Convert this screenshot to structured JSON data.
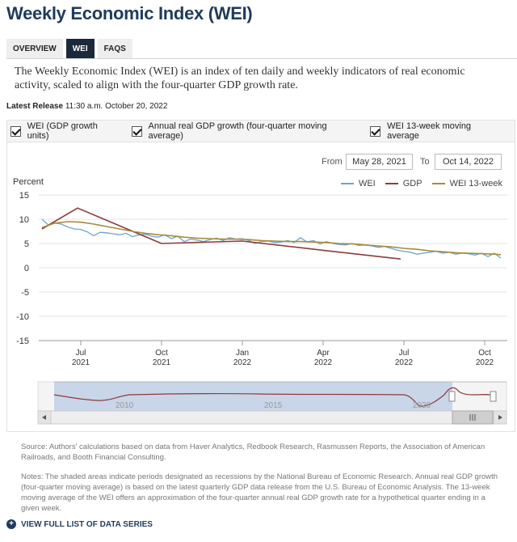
{
  "header": {
    "title": "Weekly Economic Index (WEI)"
  },
  "tabs": [
    {
      "label": "OVERVIEW",
      "active": false
    },
    {
      "label": "WEI",
      "active": true
    },
    {
      "label": "FAQS",
      "active": false
    }
  ],
  "intro": "The Weekly Economic Index (WEI) is an index of ten daily and weekly indicators of real economic activity, scaled to align with the four-quarter GDP growth rate.",
  "latest_release": {
    "label": "Latest Release",
    "value": "11:30 a.m. October 20, 2022"
  },
  "toggles": [
    {
      "label": "WEI (GDP growth units)",
      "checked": true
    },
    {
      "label": "Annual real GDP growth (four-quarter moving average)",
      "checked": true
    },
    {
      "label": "WEI 13-week moving average",
      "checked": true
    }
  ],
  "range": {
    "from_label": "From",
    "from_value": "May 28, 2021",
    "to_label": "To",
    "to_value": "Oct 14, 2022"
  },
  "colors": {
    "wei": "#6aa6cf",
    "gdp": "#8e3b3b",
    "ma13": "#a88a3c",
    "title": "#1f3b5c",
    "navigator_selection": "#c9d5e8"
  },
  "chart_data": {
    "type": "line",
    "ylabel": "Percent",
    "ylim": [
      -15,
      15
    ],
    "yticks": [
      "15",
      "10",
      "5",
      "0",
      "-5",
      "-10",
      "-15"
    ],
    "ytick_values": [
      15,
      10,
      5,
      0,
      -5,
      -10,
      -15
    ],
    "xlim": [
      2021.37,
      2022.82
    ],
    "xticks": [
      {
        "value": 2021.5,
        "month": "Jul",
        "year": "2021"
      },
      {
        "value": 2021.75,
        "month": "Oct",
        "year": "2021"
      },
      {
        "value": 2022.0,
        "month": "Jan",
        "year": "2022"
      },
      {
        "value": 2022.25,
        "month": "Apr",
        "year": "2022"
      },
      {
        "value": 2022.5,
        "month": "Jul",
        "year": "2022"
      },
      {
        "value": 2022.75,
        "month": "Oct",
        "year": "2022"
      }
    ],
    "legend_position": "top-right",
    "series": [
      {
        "name": "WEI",
        "x": [
          2021.38,
          2021.4,
          2021.42,
          2021.44,
          2021.46,
          2021.48,
          2021.5,
          2021.52,
          2021.54,
          2021.56,
          2021.58,
          2021.6,
          2021.62,
          2021.64,
          2021.66,
          2021.68,
          2021.7,
          2021.72,
          2021.74,
          2021.76,
          2021.78,
          2021.8,
          2021.82,
          2021.84,
          2021.86,
          2021.88,
          2021.9,
          2021.92,
          2021.94,
          2021.96,
          2021.98,
          2022.0,
          2022.02,
          2022.04,
          2022.06,
          2022.08,
          2022.1,
          2022.12,
          2022.14,
          2022.16,
          2022.18,
          2022.2,
          2022.22,
          2022.24,
          2022.26,
          2022.28,
          2022.3,
          2022.32,
          2022.34,
          2022.36,
          2022.38,
          2022.4,
          2022.42,
          2022.44,
          2022.46,
          2022.48,
          2022.5,
          2022.52,
          2022.54,
          2022.56,
          2022.58,
          2022.6,
          2022.62,
          2022.64,
          2022.66,
          2022.68,
          2022.7,
          2022.72,
          2022.74,
          2022.76,
          2022.78,
          2022.8
        ],
        "values": [
          10.0,
          8.8,
          9.2,
          9.0,
          8.4,
          8.0,
          7.9,
          7.4,
          6.6,
          7.3,
          7.2,
          7.0,
          6.8,
          7.1,
          6.4,
          6.8,
          6.9,
          6.5,
          6.3,
          6.8,
          6.0,
          6.5,
          5.4,
          5.9,
          5.7,
          5.4,
          5.8,
          6.1,
          5.6,
          6.2,
          5.9,
          6.0,
          5.6,
          5.0,
          5.4,
          5.5,
          5.2,
          5.3,
          5.6,
          5.2,
          6.2,
          5.3,
          5.6,
          4.9,
          5.4,
          5.0,
          4.8,
          4.7,
          5.0,
          4.6,
          4.7,
          4.5,
          4.2,
          4.4,
          4.0,
          3.6,
          3.4,
          3.2,
          2.8,
          3.0,
          3.2,
          3.4,
          3.0,
          3.2,
          2.8,
          3.0,
          2.9,
          2.6,
          3.0,
          2.3,
          3.0,
          2.0
        ]
      },
      {
        "name": "GDP",
        "x": [
          2021.38,
          2021.49,
          2021.75,
          2022.0,
          2022.25,
          2022.49
        ],
        "values": [
          8.0,
          12.3,
          5.0,
          5.5,
          3.6,
          1.8
        ]
      },
      {
        "name": "WEI 13-week",
        "x": [
          2021.38,
          2021.42,
          2021.46,
          2021.5,
          2021.54,
          2021.58,
          2021.62,
          2021.66,
          2021.7,
          2021.74,
          2021.78,
          2021.82,
          2021.86,
          2021.9,
          2021.94,
          2021.98,
          2022.02,
          2022.06,
          2022.1,
          2022.14,
          2022.18,
          2022.22,
          2022.26,
          2022.3,
          2022.34,
          2022.38,
          2022.42,
          2022.46,
          2022.5,
          2022.54,
          2022.58,
          2022.62,
          2022.66,
          2022.7,
          2022.74,
          2022.78,
          2022.8
        ],
        "values": [
          8.3,
          9.2,
          9.5,
          9.4,
          9.0,
          8.5,
          8.0,
          7.5,
          7.1,
          6.8,
          6.6,
          6.3,
          6.1,
          6.0,
          5.9,
          5.9,
          5.8,
          5.6,
          5.5,
          5.4,
          5.4,
          5.3,
          5.2,
          5.0,
          4.9,
          4.7,
          4.5,
          4.3,
          4.0,
          3.8,
          3.5,
          3.3,
          3.1,
          3.0,
          2.9,
          2.8,
          2.7
        ]
      }
    ]
  },
  "navigator": {
    "year_labels": [
      "2010",
      "2015",
      "2020"
    ],
    "scroll_left_icon": "chevron-left-icon",
    "scroll_right_icon": "chevron-right-icon",
    "grip_icon": "grip-icon"
  },
  "source": "Source: Authors' calculations based on data from Haver Analytics, Redbook Research, Rasmussen Reports, the Association of American Railroads, and Booth Financial Consulting.",
  "notes": "Notes: The shaded areas indicate periods designated as recessions by the National Bureau of Economic Research. Annual real GDP growth (four-quarter moving average) is based on the latest quarterly GDP data release from the U.S. Bureau of Economic Analysis. The 13-week moving average of the WEI offers an approximation of the four-quarter annual real GDP growth rate for a hypothetical quarter ending in a given week.",
  "footer": {
    "view_full_label": "VIEW FULL LIST OF DATA SERIES"
  }
}
